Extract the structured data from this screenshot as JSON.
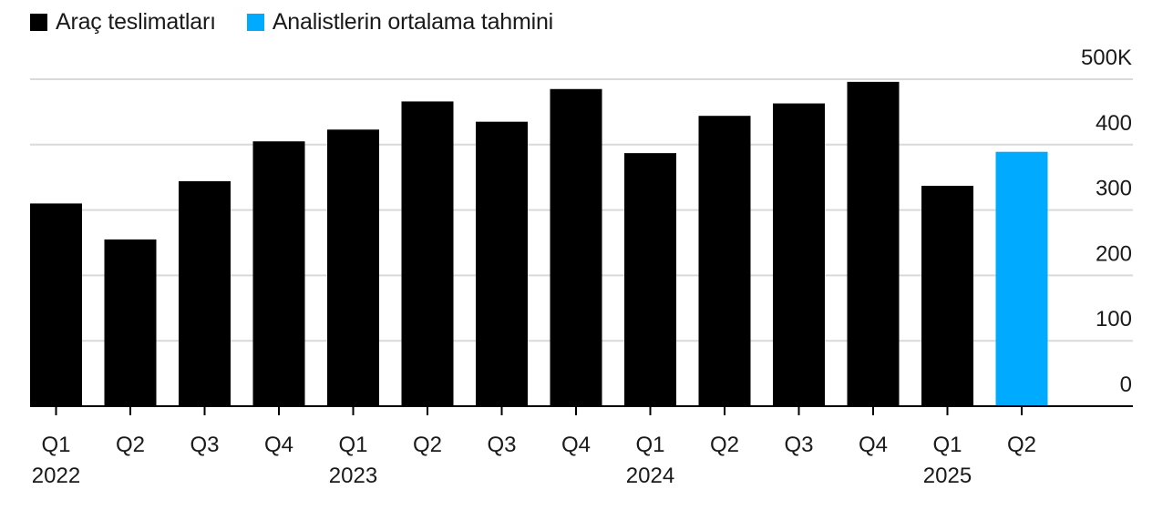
{
  "legend": [
    {
      "label": "Araç teslimatları",
      "color": "#000000"
    },
    {
      "label": "Analistlerin ortalama tahmini",
      "color": "#00aaff"
    }
  ],
  "chart_data": {
    "type": "bar",
    "categories": [
      "Q1",
      "Q2",
      "Q3",
      "Q4",
      "Q1",
      "Q2",
      "Q3",
      "Q4",
      "Q1",
      "Q2",
      "Q3",
      "Q4",
      "Q1",
      "Q2"
    ],
    "year_labels": [
      {
        "label": "2022",
        "index": 0
      },
      {
        "label": "2023",
        "index": 4
      },
      {
        "label": "2024",
        "index": 8
      },
      {
        "label": "2025",
        "index": 12
      }
    ],
    "series": [
      {
        "name": "Araç teslimatları",
        "color": "#000000",
        "values": [
          310,
          255,
          344,
          405,
          423,
          466,
          435,
          485,
          387,
          444,
          463,
          496,
          337,
          null
        ]
      },
      {
        "name": "Analistlerin ortalama tahmini",
        "color": "#00aaff",
        "values": [
          null,
          null,
          null,
          null,
          null,
          null,
          null,
          null,
          null,
          null,
          null,
          null,
          null,
          389
        ]
      }
    ],
    "y_ticks": [
      {
        "value": 0,
        "label": "0"
      },
      {
        "value": 100,
        "label": "100"
      },
      {
        "value": 200,
        "label": "200"
      },
      {
        "value": 300,
        "label": "300"
      },
      {
        "value": 400,
        "label": "400"
      },
      {
        "value": 500,
        "label": "500K"
      }
    ],
    "ylim": [
      0,
      500
    ],
    "grid": true,
    "legend_position": "top-left"
  }
}
